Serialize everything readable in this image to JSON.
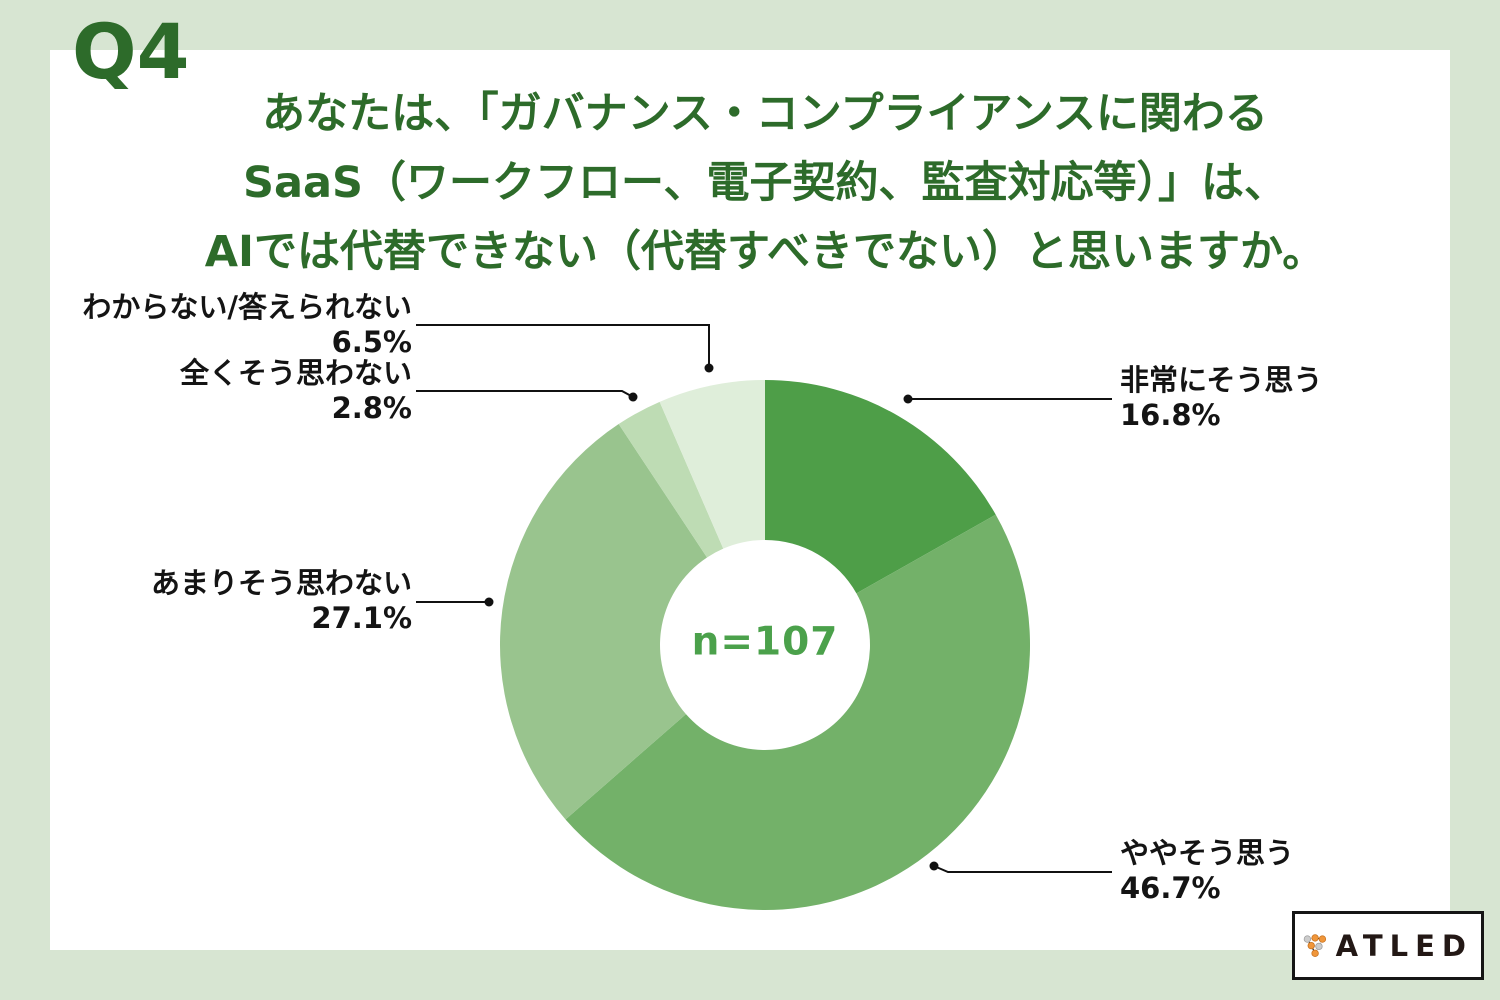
{
  "question": {
    "badge": "Q4",
    "title_lines": [
      "あなたは、「ガバナンス・コンプライアンスに関わる",
      "SaaS（ワークフロー、電子契約、監査対応等）」は、",
      "AIでは代替できない（代替すべきでない）と思いますか。"
    ]
  },
  "chart_data": {
    "type": "pie",
    "subtype": "donut",
    "title": "あなたは、「ガバナンス・コンプライアンスに関わるSaaS（ワークフロー、電子契約、監査対応等）」は、AIでは代替できない（代替すべきでない）と思いますか。",
    "center_label": "n=107",
    "sample_size": 107,
    "unit": "%",
    "start_angle_deg": 0,
    "direction": "clockwise",
    "legend_position": "callout-labels",
    "segments": [
      {
        "label": "非常にそう思う",
        "value": 16.8,
        "display": "16.8%",
        "color": "#4e9e48"
      },
      {
        "label": "ややそう思う",
        "value": 46.7,
        "display": "46.7%",
        "color": "#73b169"
      },
      {
        "label": "あまりそう思わない",
        "value": 27.1,
        "display": "27.1%",
        "color": "#99c48e"
      },
      {
        "label": "全くそう思わない",
        "value": 2.8,
        "display": "2.8%",
        "color": "#bedcb4"
      },
      {
        "label": "わからない/答えられない",
        "value": 6.5,
        "display": "6.5%",
        "color": "#dfeeda"
      }
    ]
  },
  "branding": {
    "logo_text": "ATLED"
  },
  "colors": {
    "page_background": "#d7e5d2",
    "panel_background": "#ffffff",
    "title_green": "#2d6b2a",
    "center_label_green": "#4ba14b",
    "callout_text": "#141414",
    "leader_line": "#111111",
    "logo_orange": "#f0963a",
    "logo_gray": "#cccccc"
  }
}
